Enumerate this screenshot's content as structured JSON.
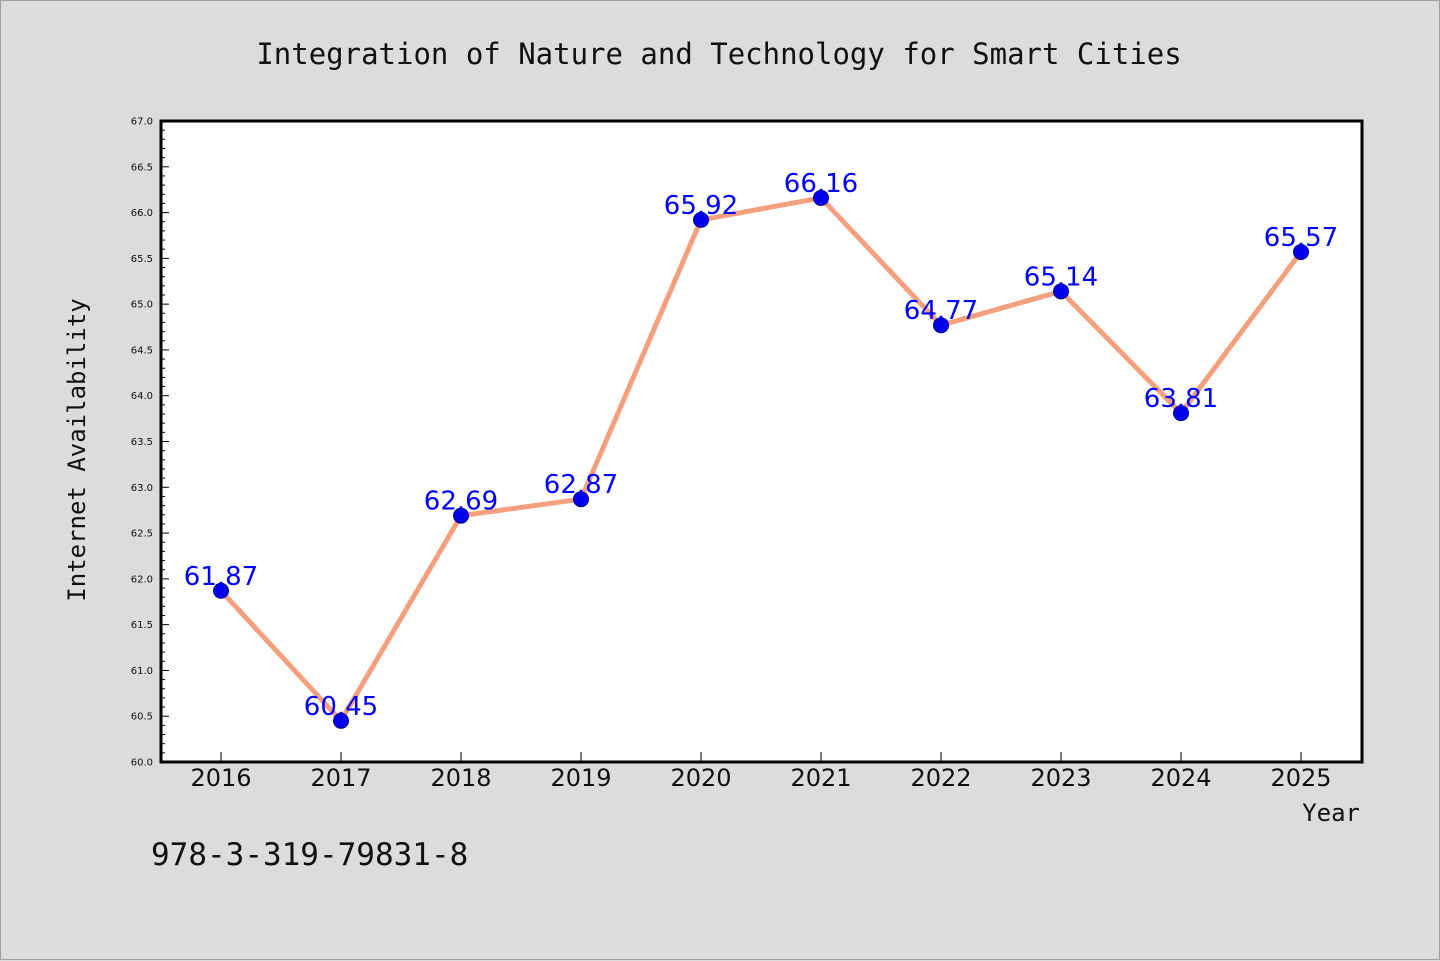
{
  "chart_data": {
    "type": "line",
    "title": "Integration of Nature and Technology for Smart Cities",
    "xlabel": "Year",
    "ylabel": "Internet Availability",
    "categories": [
      "2016",
      "2017",
      "2018",
      "2019",
      "2020",
      "2021",
      "2022",
      "2023",
      "2024",
      "2025"
    ],
    "series": [
      {
        "values": [
          61.87,
          60.45,
          62.69,
          62.87,
          65.92,
          66.16,
          64.77,
          65.14,
          63.81,
          65.57
        ],
        "data_labels": [
          "61.87",
          "60.45",
          "62.69",
          "62.87",
          "65.92",
          "66.16",
          "64.77",
          "65.14",
          "63.81",
          "65.57"
        ],
        "line_color": "#f4a07f",
        "marker_color": "#0000ee",
        "label_color": "#0000ff"
      }
    ],
    "ylim": [
      60.0,
      67.0
    ],
    "yticks": [
      "60.0",
      "60.5",
      "61.0",
      "61.5",
      "62.0",
      "62.5",
      "63.0",
      "63.5",
      "64.0",
      "64.5",
      "65.0",
      "65.5",
      "66.0",
      "66.5",
      "67.0"
    ],
    "grid": false,
    "legend": "none"
  },
  "footer": {
    "code": "978-3-319-79831-8"
  },
  "colors": {
    "background": "#dcdcdc",
    "plot_background": "#ffffff",
    "text": "#111111"
  }
}
